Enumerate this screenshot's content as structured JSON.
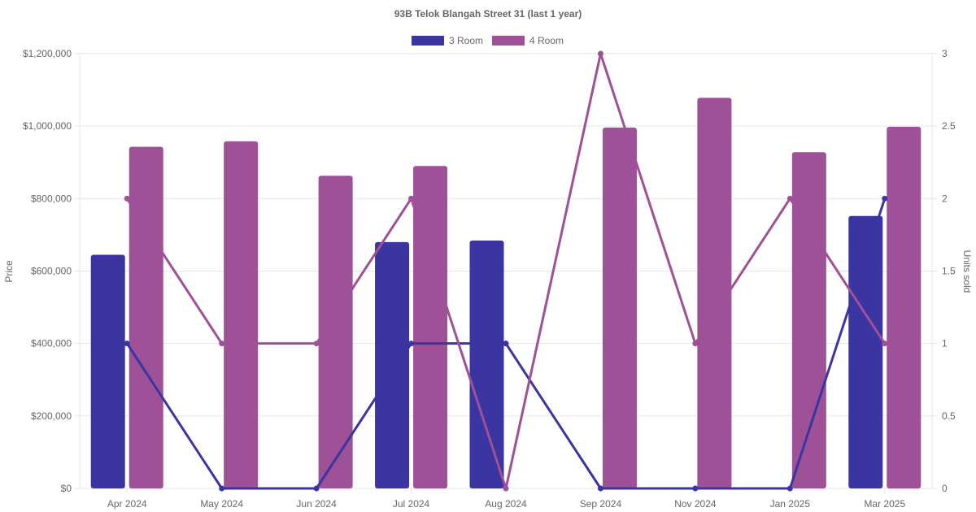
{
  "chart_data": {
    "type": "bar",
    "title": "93B Telok Blangah Street 31 (last 1 year)",
    "categories": [
      "Apr 2024",
      "May 2024",
      "Jun 2024",
      "Jul 2024",
      "Aug 2024",
      "Sep 2024",
      "Nov 2024",
      "Jan 2025",
      "Mar 2025"
    ],
    "ylabel": "Price",
    "y2label": "Units sold",
    "ylim": [
      0,
      1200000
    ],
    "y2lim": [
      0,
      3
    ],
    "yticks": [
      "$0",
      "$200,000",
      "$400,000",
      "$600,000",
      "$800,000",
      "$1,000,000",
      "$1,200,000"
    ],
    "y2ticks": [
      "0",
      "0.5",
      "1",
      "1.5",
      "2",
      "2.5",
      "3"
    ],
    "grid": true,
    "legend_position": "top",
    "series": [
      {
        "name": "3 Room",
        "color": "#3a35a1",
        "price": [
          645000,
          null,
          null,
          680000,
          684000,
          null,
          null,
          null,
          752000
        ],
        "units": [
          1,
          0,
          0,
          1,
          1,
          0,
          0,
          0,
          2
        ]
      },
      {
        "name": "4 Room",
        "color": "#9e5196",
        "price": [
          943000,
          958000,
          863000,
          890000,
          null,
          996000,
          1078000,
          928000,
          998000
        ],
        "units": [
          2,
          1,
          1,
          2,
          0,
          3,
          1,
          2,
          1
        ]
      }
    ]
  }
}
